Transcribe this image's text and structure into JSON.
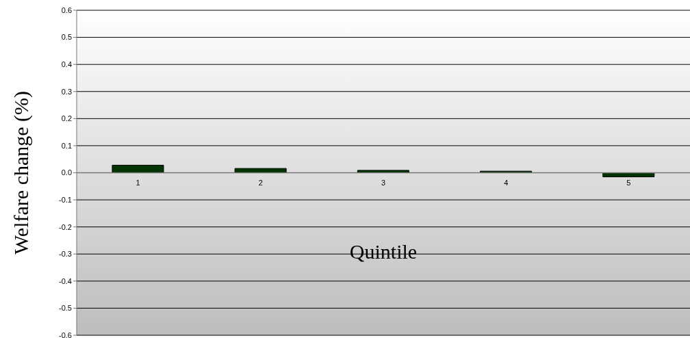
{
  "chart_data": {
    "type": "bar",
    "xlabel": "Quintile",
    "ylabel": "Welfare change (%)",
    "categories": [
      "1",
      "2",
      "3",
      "4",
      "5"
    ],
    "values": [
      0.028,
      0.016,
      0.009,
      0.006,
      -0.015
    ],
    "color": "#003300",
    "ylim": [
      -0.6,
      0.6
    ],
    "yticks": [
      -0.6,
      -0.5,
      -0.4,
      -0.3,
      -0.2,
      -0.1,
      {
        "value": 0,
        "label": "0.0"
      },
      0.1,
      0.2,
      0.3,
      0.4,
      0.5,
      0.6
    ],
    "grid": "y"
  }
}
